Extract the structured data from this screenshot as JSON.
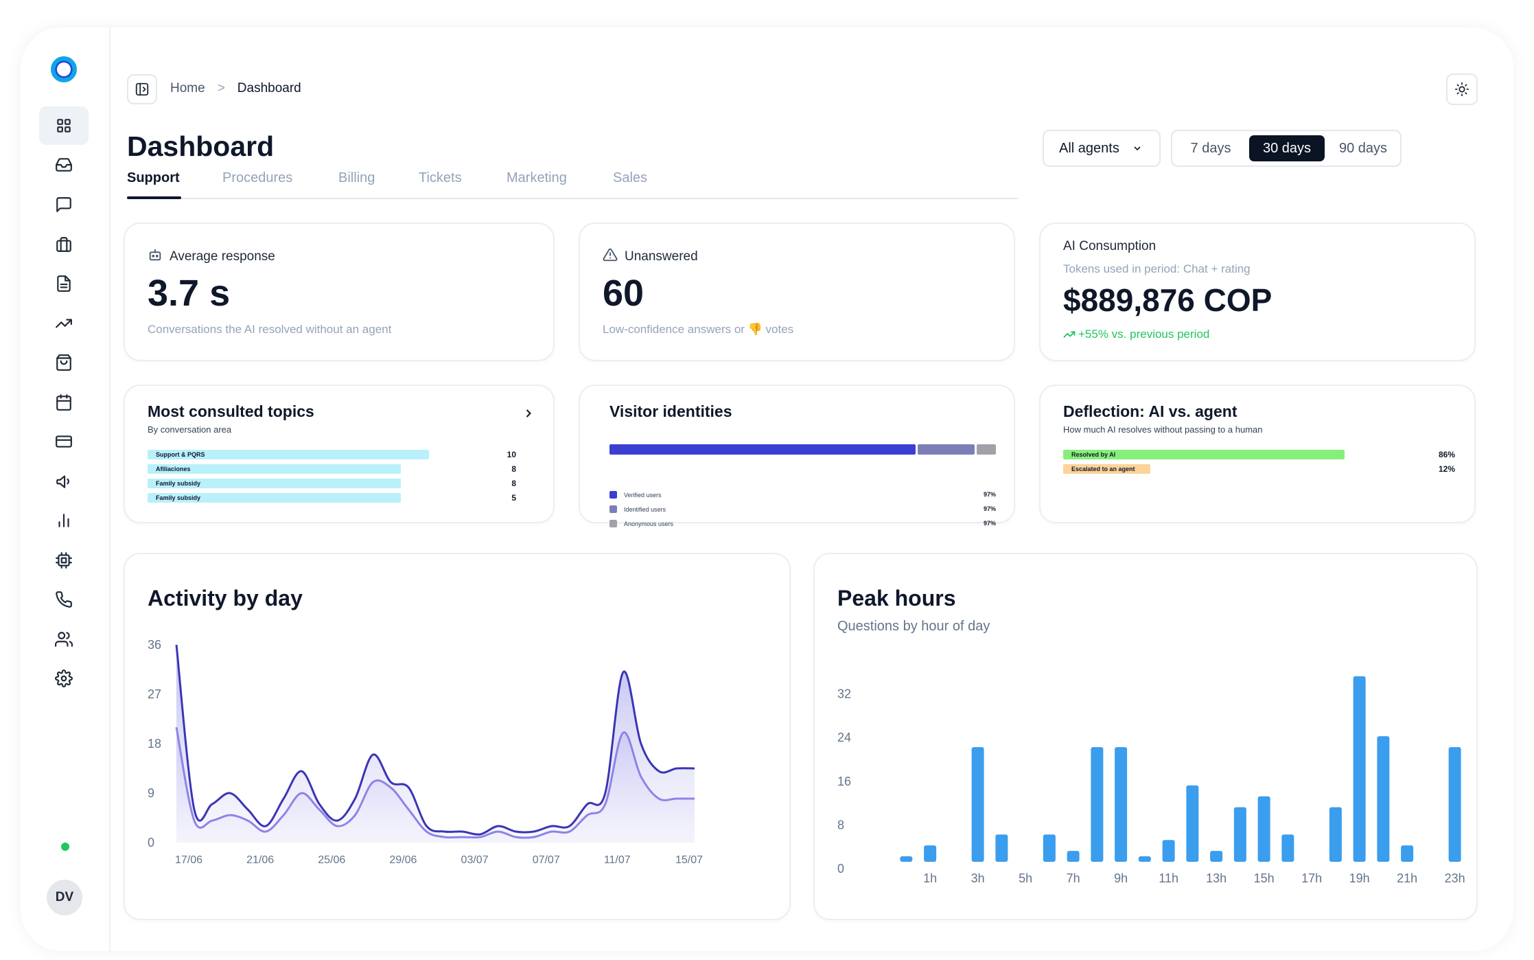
{
  "breadcrumb": {
    "home": "Home",
    "separator": ">",
    "current": "Dashboard"
  },
  "page": {
    "title": "Dashboard"
  },
  "tabs": [
    "Support",
    "Procedures",
    "Billing",
    "Tickets",
    "Marketing",
    "Sales"
  ],
  "filters": {
    "agent": "All agents",
    "ranges": [
      "7 days",
      "30 days",
      "90 days"
    ],
    "selected_range": "30 days"
  },
  "sidebar": {
    "icons": [
      "dashboard-icon",
      "inbox-icon",
      "chat-icon",
      "briefcase-icon",
      "document-icon",
      "trending-icon",
      "shopping-bag-icon",
      "calendar-icon",
      "credit-card-icon",
      "megaphone-icon",
      "bar-chart-icon",
      "chip-icon",
      "phone-icon",
      "users-icon",
      "settings-icon"
    ],
    "avatar_initials": "DV",
    "status_color": "#22c55e"
  },
  "kpis": {
    "avg_response": {
      "label": "Average response",
      "value": "3.7 s",
      "sub": "Conversations the AI resolved without an agent"
    },
    "unanswered": {
      "label": "Unanswered",
      "value": "60",
      "sub": "Low-confidence answers or 👎 votes"
    },
    "ai_consumption": {
      "label": "AI Consumption",
      "sub": "Tokens used in period: Chat + rating",
      "value": "$889,876 COP",
      "change": "+55% vs. previous period"
    }
  },
  "topics": {
    "title": "Most consulted topics",
    "subtitle": "By conversation area",
    "items": [
      {
        "label": "Support & PQRS",
        "value": 10
      },
      {
        "label": "Afiliaciones",
        "value": 8
      },
      {
        "label": "Family subsidy",
        "value": 8
      },
      {
        "label": "Family subsidy",
        "value": 5
      }
    ]
  },
  "visitors": {
    "title": "Visitor identities",
    "items": [
      {
        "label": "Verified users",
        "value": "97%",
        "color": "#3b3fd1",
        "share": 0.8
      },
      {
        "label": "Identified users",
        "value": "97%",
        "color": "#7c7fb6",
        "share": 0.15
      },
      {
        "label": "Anonymous users",
        "value": "97%",
        "color": "#a1a1aa",
        "share": 0.05
      }
    ]
  },
  "deflection": {
    "title": "Deflection: AI vs. agent",
    "subtitle": "How much AI resolves without passing to a human",
    "items": [
      {
        "label": "Resolved by AI",
        "value": "86%",
        "color": "#86ef7a"
      },
      {
        "label": "Escalated to an agent",
        "value": "12%",
        "color": "#fdd39a"
      }
    ]
  },
  "activity": {
    "title": "Activity by day",
    "chart_data": {
      "type": "area",
      "x": [
        "17/06",
        "18/06",
        "19/06",
        "20/06",
        "21/06",
        "22/06",
        "23/06",
        "24/06",
        "25/06",
        "26/06",
        "27/06",
        "28/06",
        "29/06",
        "30/06",
        "01/07",
        "02/07",
        "03/07",
        "04/07",
        "05/07",
        "06/07",
        "07/07",
        "08/07",
        "09/07",
        "10/07",
        "11/07",
        "12/07",
        "13/07",
        "14/07",
        "15/07",
        "16/07"
      ],
      "xticks": [
        "17/06",
        "21/06",
        "25/06",
        "29/06",
        "03/07",
        "07/07",
        "11/07",
        "15/07"
      ],
      "yticks": [
        0,
        9,
        18,
        27,
        36
      ],
      "ylim": [
        0,
        36
      ],
      "series": [
        {
          "values": [
            36,
            6,
            7,
            9,
            6,
            3,
            8,
            13,
            7,
            4,
            8,
            16,
            11,
            10,
            3,
            2,
            2,
            1.5,
            3,
            2,
            2,
            3,
            3,
            7,
            9,
            31,
            18,
            13,
            13.5,
            13.5
          ]
        },
        {
          "values": [
            21,
            4,
            4,
            5,
            4,
            2,
            5,
            9,
            6,
            3,
            5,
            11,
            10,
            6,
            2,
            1,
            1,
            1,
            2,
            1,
            1,
            2,
            2,
            5,
            7,
            20,
            12,
            8,
            8,
            8
          ]
        }
      ]
    }
  },
  "peak": {
    "title": "Peak hours",
    "subtitle": "Questions by hour of day",
    "chart_data": {
      "type": "bar",
      "categories": [
        "0h",
        "1h",
        "2h",
        "3h",
        "4h",
        "5h",
        "6h",
        "7h",
        "8h",
        "9h",
        "10h",
        "11h",
        "12h",
        "13h",
        "14h",
        "15h",
        "16h",
        "17h",
        "18h",
        "19h",
        "20h",
        "21h",
        "22h",
        "23h"
      ],
      "xticks": [
        "1h",
        "3h",
        "5h",
        "7h",
        "9h",
        "11h",
        "13h",
        "15h",
        "17h",
        "19h",
        "21h",
        "23h"
      ],
      "values": [
        1,
        3,
        0,
        21,
        5,
        0,
        5,
        2,
        21,
        21,
        1,
        4,
        14,
        2,
        10,
        12,
        5,
        0,
        10,
        34,
        23,
        3,
        0,
        21
      ],
      "yticks": [
        0,
        8,
        16,
        24,
        32
      ],
      "ylim": [
        0,
        40
      ]
    }
  }
}
